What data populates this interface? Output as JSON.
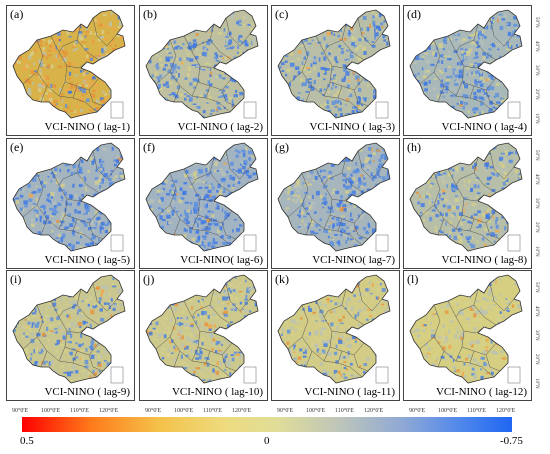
{
  "panels": [
    {
      "label": "(a)",
      "title": "VCI-NINO ( lag-1)",
      "base": "#d7b34a",
      "blue": 0.18,
      "orange": 0.55
    },
    {
      "label": "(b)",
      "title": "VCI-NINO ( lag-2)",
      "base": "#bfc0a0",
      "blue": 0.62,
      "orange": 0.05
    },
    {
      "label": "(c)",
      "title": "VCI-NINO ( lag-3)",
      "base": "#b9bfa6",
      "blue": 0.65,
      "orange": 0.04
    },
    {
      "label": "(d)",
      "title": "VCI-NINO ( lag-4)",
      "base": "#a9b8b8",
      "blue": 0.72,
      "orange": 0.03
    },
    {
      "label": "(e)",
      "title": "VCI-NINO ( lag-5)",
      "base": "#a4b5c0",
      "blue": 0.78,
      "orange": 0.02
    },
    {
      "label": "(f)",
      "title": "VCI-NINO( lag-6)",
      "base": "#a2b4c2",
      "blue": 0.8,
      "orange": 0.02
    },
    {
      "label": "(g)",
      "title": "VCI-NINO( lag-7)",
      "base": "#a6b6bc",
      "blue": 0.76,
      "orange": 0.03
    },
    {
      "label": "(h)",
      "title": "VCI-NINO ( lag-8)",
      "base": "#b8bfa8",
      "blue": 0.6,
      "orange": 0.05
    },
    {
      "label": "(i)",
      "title": "VCI-NINO ( lag-9)",
      "base": "#c9c690",
      "blue": 0.42,
      "orange": 0.08
    },
    {
      "label": "(j)",
      "title": "VCI-NINO ( lag-10)",
      "base": "#cdc98c",
      "blue": 0.36,
      "orange": 0.08
    },
    {
      "label": "(k)",
      "title": "VCI-NINO ( lag-11)",
      "base": "#d2cc86",
      "blue": 0.22,
      "orange": 0.1
    },
    {
      "label": "(l)",
      "title": "VCI-NINO ( lag-12)",
      "base": "#d6cf82",
      "blue": 0.12,
      "orange": 0.12
    }
  ],
  "lat_ticks": [
    "50°N",
    "40°N",
    "30°N",
    "20°N",
    "10°N"
  ],
  "lon_ticks": [
    "90°0'E",
    "100°0'E",
    "110°0'E",
    "120°0'E"
  ],
  "colorbar": {
    "min_label": "0.5",
    "mid_label": "0",
    "max_label": "-0.75",
    "colors": [
      "#ff0000",
      "#f4c24a",
      "#e0dd98",
      "#8ea8d6",
      "#1f66f2"
    ]
  }
}
